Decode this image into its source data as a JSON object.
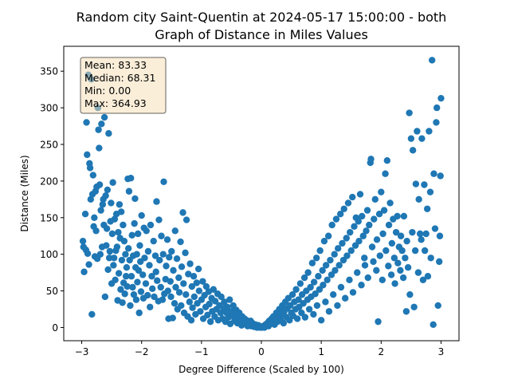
{
  "chart_data": {
    "type": "scatter",
    "title_line1": "Random city Saint-Quentin at 2024-05-17 15:00:00  - both",
    "title_line2": "Graph of Distance in Miles Values",
    "xlabel": "Degree Difference (Scaled by 100)",
    "ylabel": "Distance (Miles)",
    "xlim": [
      -3.3,
      3.3
    ],
    "ylim": [
      -18,
      384
    ],
    "x_ticks": [
      -3,
      -2,
      -1,
      0,
      1,
      2,
      3
    ],
    "x_tick_labels": [
      "−3",
      "−2",
      "−1",
      "0",
      "1",
      "2",
      "3"
    ],
    "y_ticks": [
      0,
      50,
      100,
      150,
      200,
      250,
      300,
      350
    ],
    "y_tick_labels": [
      "0",
      "50",
      "100",
      "150",
      "200",
      "250",
      "300",
      "350"
    ],
    "grid": false,
    "marker_color": "#1f77b4",
    "stats_box": {
      "mean": "Mean: 83.33",
      "median": "Median: 68.31",
      "min": "Min: 0.00",
      "max": "Max: 364.93"
    },
    "points": [
      [
        -2.98,
        118
      ],
      [
        -2.97,
        110
      ],
      [
        -2.96,
        76
      ],
      [
        -2.94,
        155
      ],
      [
        -2.93,
        106
      ],
      [
        -2.92,
        280
      ],
      [
        -2.91,
        236
      ],
      [
        -2.9,
        101
      ],
      [
        -2.89,
        345
      ],
      [
        -2.88,
        86
      ],
      [
        -2.87,
        224
      ],
      [
        -2.86,
        218
      ],
      [
        -2.85,
        175
      ],
      [
        -2.84,
        339
      ],
      [
        -2.83,
        18
      ],
      [
        -2.82,
        182
      ],
      [
        -2.81,
        208
      ],
      [
        -2.8,
        138
      ],
      [
        -2.79,
        150
      ],
      [
        -2.78,
        97
      ],
      [
        -2.77,
        186
      ],
      [
        -2.76,
        132
      ],
      [
        -2.75,
        192
      ],
      [
        -2.74,
        94
      ],
      [
        -2.73,
        300
      ],
      [
        -2.72,
        270
      ],
      [
        -2.71,
        245
      ],
      [
        -2.7,
        195
      ],
      [
        -2.69,
        100
      ],
      [
        -2.68,
        160
      ],
      [
        -2.67,
        278
      ],
      [
        -2.66,
        110
      ],
      [
        -2.65,
        168
      ],
      [
        -2.64,
        175
      ],
      [
        -2.63,
        140
      ],
      [
        -2.62,
        287
      ],
      [
        -2.61,
        42
      ],
      [
        -2.6,
        180
      ],
      [
        -2.59,
        112
      ],
      [
        -2.58,
        135
      ],
      [
        -2.57,
        188
      ],
      [
        -2.56,
        79
      ],
      [
        -2.55,
        265
      ],
      [
        -2.54,
        95
      ],
      [
        -2.53,
        104
      ],
      [
        -2.52,
        145
      ],
      [
        -2.51,
        170
      ],
      [
        -2.5,
        60
      ],
      [
        -2.49,
        128
      ],
      [
        -2.48,
        198
      ],
      [
        -2.47,
        85
      ],
      [
        -2.46,
        95
      ],
      [
        -2.45,
        148
      ],
      [
        -2.44,
        65
      ],
      [
        -2.43,
        105
      ],
      [
        -2.42,
        155
      ],
      [
        -2.41,
        110
      ],
      [
        -2.4,
        37
      ],
      [
        -2.39,
        130
      ],
      [
        -2.38,
        74
      ],
      [
        -2.37,
        168
      ],
      [
        -2.36,
        122
      ],
      [
        -2.35,
        52
      ],
      [
        -2.34,
        158
      ],
      [
        -2.33,
        92
      ],
      [
        -2.32,
        34
      ],
      [
        -2.31,
        140
      ],
      [
        -2.3,
        61
      ],
      [
        -2.29,
        118
      ],
      [
        -2.28,
        46
      ],
      [
        -2.27,
        100
      ],
      [
        -2.26,
        70
      ],
      [
        -2.25,
        82
      ],
      [
        -2.24,
        56
      ],
      [
        -2.23,
        203
      ],
      [
        -2.22,
        108
      ],
      [
        -2.21,
        186
      ],
      [
        -2.2,
        92
      ],
      [
        -2.19,
        30
      ],
      [
        -2.18,
        204
      ],
      [
        -2.17,
        70
      ],
      [
        -2.16,
        126
      ],
      [
        -2.15,
        55
      ],
      [
        -2.14,
        98
      ],
      [
        -2.13,
        45
      ],
      [
        -2.12,
        142
      ],
      [
        -2.11,
        176
      ],
      [
        -2.1,
        82
      ],
      [
        -2.09,
        38
      ],
      [
        -2.08,
        100
      ],
      [
        -2.07,
        62
      ],
      [
        -2.06,
        128
      ],
      [
        -2.05,
        78
      ],
      [
        -2.04,
        20
      ],
      [
        -2.03,
        112
      ],
      [
        -2.02,
        90
      ],
      [
        -2.01,
        49
      ],
      [
        -2.0,
        153
      ],
      [
        -1.98,
        72
      ],
      [
        -1.97,
        40
      ],
      [
        -1.96,
        136
      ],
      [
        -1.95,
        95
      ],
      [
        -1.93,
        60
      ],
      [
        -1.92,
        132
      ],
      [
        -1.9,
        44
      ],
      [
        -1.89,
        104
      ],
      [
        -1.87,
        85
      ],
      [
        -1.86,
        28
      ],
      [
        -1.85,
        140
      ],
      [
        -1.83,
        70
      ],
      [
        -1.82,
        53
      ],
      [
        -1.8,
        118
      ],
      [
        -1.79,
        42
      ],
      [
        -1.77,
        98
      ],
      [
        -1.76,
        76
      ],
      [
        -1.75,
        172
      ],
      [
        -1.74,
        64
      ],
      [
        -1.72,
        36
      ],
      [
        -1.71,
        147
      ],
      [
        -1.7,
        92
      ],
      [
        -1.68,
        55
      ],
      [
        -1.67,
        125
      ],
      [
        -1.65,
        38
      ],
      [
        -1.64,
        100
      ],
      [
        -1.63,
        199
      ],
      [
        -1.62,
        46
      ],
      [
        -1.6,
        66
      ],
      [
        -1.59,
        84
      ],
      [
        -1.57,
        120
      ],
      [
        -1.56,
        50
      ],
      [
        -1.55,
        12
      ],
      [
        -1.54,
        96
      ],
      [
        -1.52,
        63
      ],
      [
        -1.51,
        42
      ],
      [
        -1.5,
        104
      ],
      [
        -1.48,
        13
      ],
      [
        -1.47,
        78
      ],
      [
        -1.45,
        33
      ],
      [
        -1.44,
        132
      ],
      [
        -1.43,
        55
      ],
      [
        -1.41,
        94
      ],
      [
        -1.4,
        25
      ],
      [
        -1.38,
        68
      ],
      [
        -1.37,
        48
      ],
      [
        -1.35,
        117
      ],
      [
        -1.34,
        30
      ],
      [
        -1.33,
        83
      ],
      [
        -1.31,
        157
      ],
      [
        -1.3,
        60
      ],
      [
        -1.29,
        20
      ],
      [
        -1.27,
        102
      ],
      [
        -1.26,
        45
      ],
      [
        -1.25,
        147
      ],
      [
        -1.23,
        15
      ],
      [
        -1.22,
        73
      ],
      [
        -1.2,
        35
      ],
      [
        -1.19,
        87
      ],
      [
        -1.17,
        10
      ],
      [
        -1.16,
        56
      ],
      [
        -1.15,
        27
      ],
      [
        -1.13,
        70
      ],
      [
        -1.12,
        42
      ],
      [
        -1.1,
        18
      ],
      [
        -1.08,
        61
      ],
      [
        -1.07,
        33
      ],
      [
        -1.05,
        80
      ],
      [
        -1.04,
        50
      ],
      [
        -1.02,
        22
      ],
      [
        -1.0,
        38
      ],
      [
        -0.98,
        63
      ],
      [
        -0.97,
        12
      ],
      [
        -0.95,
        44
      ],
      [
        -0.93,
        28
      ],
      [
        -0.92,
        56
      ],
      [
        -0.9,
        17
      ],
      [
        -0.88,
        49
      ],
      [
        -0.87,
        32
      ],
      [
        -0.85,
        8
      ],
      [
        -0.83,
        40
      ],
      [
        -0.82,
        22
      ],
      [
        -0.8,
        52
      ],
      [
        -0.78,
        15
      ],
      [
        -0.77,
        36
      ],
      [
        -0.75,
        25
      ],
      [
        -0.73,
        46
      ],
      [
        -0.72,
        10
      ],
      [
        -0.7,
        30
      ],
      [
        -0.68,
        20
      ],
      [
        -0.67,
        42
      ],
      [
        -0.65,
        12
      ],
      [
        -0.63,
        26
      ],
      [
        -0.62,
        35
      ],
      [
        -0.6,
        8
      ],
      [
        -0.58,
        20
      ],
      [
        -0.57,
        28
      ],
      [
        -0.55,
        14
      ],
      [
        -0.53,
        38
      ],
      [
        -0.52,
        5
      ],
      [
        -0.5,
        22
      ],
      [
        -0.48,
        16
      ],
      [
        -0.47,
        30
      ],
      [
        -0.45,
        9
      ],
      [
        -0.43,
        18
      ],
      [
        -0.42,
        24
      ],
      [
        -0.4,
        6
      ],
      [
        -0.38,
        14
      ],
      [
        -0.37,
        20
      ],
      [
        -0.35,
        10
      ],
      [
        -0.33,
        3
      ],
      [
        -0.32,
        15
      ],
      [
        -0.3,
        8
      ],
      [
        -0.28,
        12
      ],
      [
        -0.27,
        5
      ],
      [
        -0.25,
        10
      ],
      [
        -0.23,
        2
      ],
      [
        -0.22,
        7
      ],
      [
        -0.2,
        4
      ],
      [
        -0.18,
        9
      ],
      [
        -0.17,
        2
      ],
      [
        -0.15,
        6
      ],
      [
        -0.13,
        3
      ],
      [
        -0.12,
        1
      ],
      [
        -0.1,
        4
      ],
      [
        -0.08,
        2
      ],
      [
        -0.07,
        0
      ],
      [
        -0.05,
        3
      ],
      [
        -0.03,
        1
      ],
      [
        -0.02,
        0
      ],
      [
        0.0,
        0
      ],
      [
        0.02,
        1
      ],
      [
        0.03,
        2
      ],
      [
        0.05,
        0
      ],
      [
        0.07,
        4
      ],
      [
        0.08,
        3
      ],
      [
        0.1,
        6
      ],
      [
        0.12,
        2
      ],
      [
        0.13,
        9
      ],
      [
        0.15,
        5
      ],
      [
        0.17,
        12
      ],
      [
        0.18,
        7
      ],
      [
        0.2,
        15
      ],
      [
        0.22,
        4
      ],
      [
        0.23,
        10
      ],
      [
        0.25,
        20
      ],
      [
        0.27,
        8
      ],
      [
        0.28,
        14
      ],
      [
        0.3,
        25
      ],
      [
        0.32,
        11
      ],
      [
        0.33,
        18
      ],
      [
        0.35,
        30
      ],
      [
        0.37,
        6
      ],
      [
        0.38,
        22
      ],
      [
        0.4,
        35
      ],
      [
        0.42,
        14
      ],
      [
        0.43,
        26
      ],
      [
        0.45,
        40
      ],
      [
        0.47,
        10
      ],
      [
        0.48,
        30
      ],
      [
        0.5,
        20
      ],
      [
        0.52,
        45
      ],
      [
        0.53,
        16
      ],
      [
        0.55,
        35
      ],
      [
        0.57,
        25
      ],
      [
        0.58,
        52
      ],
      [
        0.6,
        12
      ],
      [
        0.62,
        38
      ],
      [
        0.63,
        28
      ],
      [
        0.65,
        60
      ],
      [
        0.67,
        20
      ],
      [
        0.68,
        45
      ],
      [
        0.7,
        33
      ],
      [
        0.72,
        68
      ],
      [
        0.73,
        14
      ],
      [
        0.75,
        50
      ],
      [
        0.77,
        38
      ],
      [
        0.78,
        75
      ],
      [
        0.8,
        25
      ],
      [
        0.82,
        55
      ],
      [
        0.83,
        42
      ],
      [
        0.85,
        88
      ],
      [
        0.87,
        18
      ],
      [
        0.88,
        62
      ],
      [
        0.9,
        46
      ],
      [
        0.92,
        95
      ],
      [
        0.93,
        30
      ],
      [
        0.95,
        70
      ],
      [
        0.97,
        52
      ],
      [
        0.98,
        105
      ],
      [
        1.0,
        10
      ],
      [
        1.02,
        78
      ],
      [
        1.03,
        58
      ],
      [
        1.05,
        118
      ],
      [
        1.07,
        35
      ],
      [
        1.08,
        85
      ],
      [
        1.1,
        65
      ],
      [
        1.12,
        125
      ],
      [
        1.13,
        22
      ],
      [
        1.15,
        92
      ],
      [
        1.17,
        72
      ],
      [
        1.18,
        140
      ],
      [
        1.2,
        45
      ],
      [
        1.22,
        100
      ],
      [
        1.23,
        78
      ],
      [
        1.25,
        148
      ],
      [
        1.27,
        30
      ],
      [
        1.28,
        108
      ],
      [
        1.3,
        85
      ],
      [
        1.32,
        155
      ],
      [
        1.33,
        55
      ],
      [
        1.35,
        115
      ],
      [
        1.37,
        92
      ],
      [
        1.38,
        162
      ],
      [
        1.4,
        40
      ],
      [
        1.42,
        122
      ],
      [
        1.43,
        98
      ],
      [
        1.45,
        170
      ],
      [
        1.47,
        65
      ],
      [
        1.48,
        130
      ],
      [
        1.5,
        105
      ],
      [
        1.52,
        178
      ],
      [
        1.53,
        48
      ],
      [
        1.55,
        138
      ],
      [
        1.57,
        112
      ],
      [
        1.58,
        150
      ],
      [
        1.6,
        75
      ],
      [
        1.62,
        145
      ],
      [
        1.63,
        118
      ],
      [
        1.65,
        182
      ],
      [
        1.67,
        58
      ],
      [
        1.68,
        152
      ],
      [
        1.7,
        125
      ],
      [
        1.72,
        95
      ],
      [
        1.73,
        85
      ],
      [
        1.75,
        132
      ],
      [
        1.77,
        160
      ],
      [
        1.78,
        68
      ],
      [
        1.8,
        140
      ],
      [
        1.82,
        225
      ],
      [
        1.83,
        230
      ],
      [
        1.85,
        110
      ],
      [
        1.87,
        90
      ],
      [
        1.88,
        148
      ],
      [
        1.9,
        175
      ],
      [
        1.92,
        78
      ],
      [
        1.93,
        120
      ],
      [
        1.95,
        8
      ],
      [
        1.97,
        155
      ],
      [
        1.98,
        98
      ],
      [
        2.0,
        185
      ],
      [
        2.02,
        65
      ],
      [
        2.03,
        128
      ],
      [
        2.05,
        160
      ],
      [
        2.07,
        210
      ],
      [
        2.08,
        105
      ],
      [
        2.1,
        228
      ],
      [
        2.12,
        84
      ],
      [
        2.13,
        140
      ],
      [
        2.15,
        170
      ],
      [
        2.17,
        72
      ],
      [
        2.18,
        115
      ],
      [
        2.2,
        148
      ],
      [
        2.22,
        95
      ],
      [
        2.23,
        60
      ],
      [
        2.25,
        130
      ],
      [
        2.27,
        152
      ],
      [
        2.28,
        88
      ],
      [
        2.3,
        110
      ],
      [
        2.32,
        78
      ],
      [
        2.33,
        125
      ],
      [
        2.35,
        105
      ],
      [
        2.37,
        68
      ],
      [
        2.38,
        152
      ],
      [
        2.4,
        95
      ],
      [
        2.42,
        22
      ],
      [
        2.43,
        118
      ],
      [
        2.45,
        82
      ],
      [
        2.47,
        293
      ],
      [
        2.48,
        45
      ],
      [
        2.5,
        258
      ],
      [
        2.52,
        130
      ],
      [
        2.53,
        242
      ],
      [
        2.55,
        28
      ],
      [
        2.57,
        105
      ],
      [
        2.58,
        196
      ],
      [
        2.6,
        268
      ],
      [
        2.62,
        75
      ],
      [
        2.63,
        175
      ],
      [
        2.65,
        128
      ],
      [
        2.67,
        120
      ],
      [
        2.68,
        258
      ],
      [
        2.7,
        65
      ],
      [
        2.72,
        195
      ],
      [
        2.73,
        105
      ],
      [
        2.75,
        128
      ],
      [
        2.77,
        162
      ],
      [
        2.78,
        70
      ],
      [
        2.8,
        268
      ],
      [
        2.82,
        185
      ],
      [
        2.83,
        95
      ],
      [
        2.85,
        365
      ],
      [
        2.87,
        4
      ],
      [
        2.88,
        210
      ],
      [
        2.9,
        135
      ],
      [
        2.92,
        280
      ],
      [
        2.93,
        300
      ],
      [
        2.95,
        30
      ],
      [
        2.97,
        90
      ],
      [
        2.98,
        125
      ],
      [
        2.99,
        207
      ],
      [
        3.0,
        313
      ]
    ]
  }
}
